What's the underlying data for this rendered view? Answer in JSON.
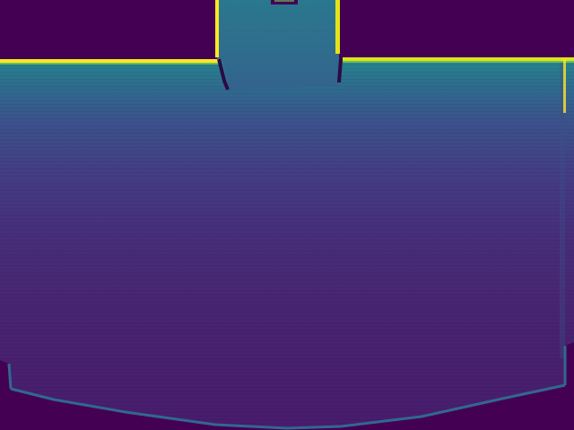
{
  "image": {
    "kind": "depth-map",
    "colormap": "viridis",
    "colors": {
      "background": "#440154",
      "far": "#481a6c",
      "mid": "#3b528b",
      "near": "#2a788e",
      "edge": "#fde725",
      "edge_alt": "#b5de2b"
    }
  }
}
